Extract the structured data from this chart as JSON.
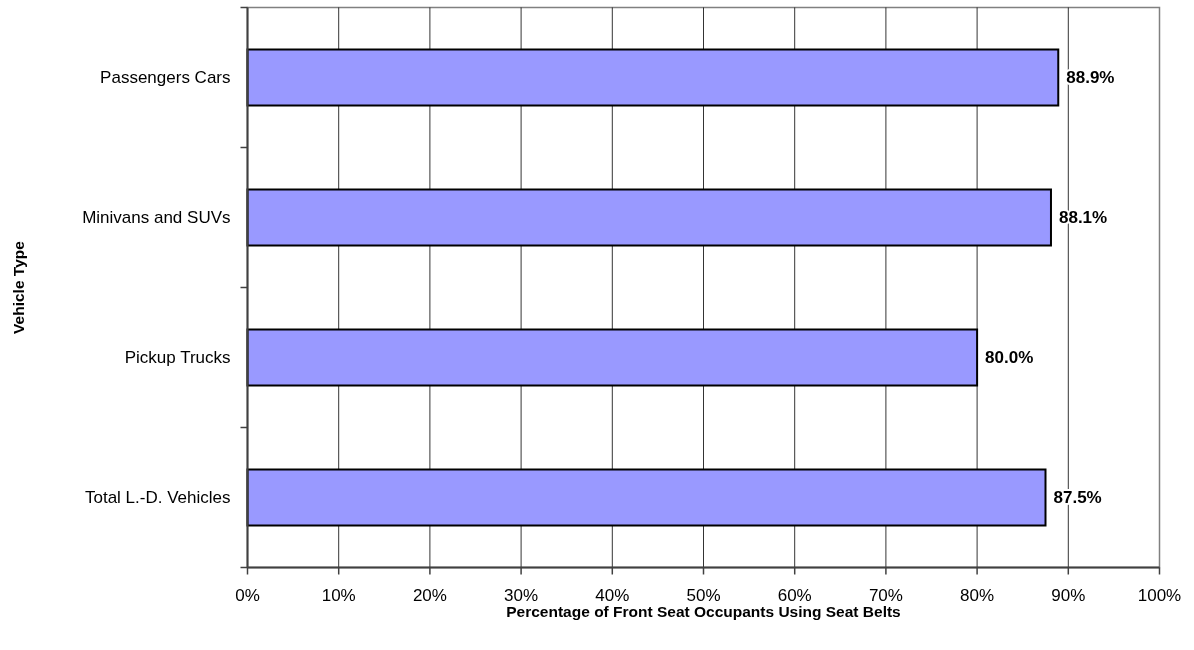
{
  "chart_data": {
    "type": "bar",
    "orientation": "horizontal",
    "xlabel": "Percentage of Front Seat Occupants Using Seat Belts",
    "ylabel": "Vehicle Type",
    "categories": [
      "Passengers Cars",
      "Minivans and SUVs",
      "Pickup Trucks",
      "Total L.-D. Vehicles"
    ],
    "values": [
      88.9,
      88.1,
      80.0,
      87.5
    ],
    "color": "#9999ff",
    "value_labels": [
      "88.9%",
      "88.1%",
      "80.0%",
      "87.5%"
    ],
    "xlim": [
      0,
      100
    ],
    "xticks": [
      {
        "value": 0,
        "label": "0%"
      },
      {
        "value": 10,
        "label": "10%"
      },
      {
        "value": 20,
        "label": "20%"
      },
      {
        "value": 30,
        "label": "30%"
      },
      {
        "value": 40,
        "label": "40%"
      },
      {
        "value": 50,
        "label": "50%"
      },
      {
        "value": 60,
        "label": "60%"
      },
      {
        "value": 70,
        "label": "70%"
      },
      {
        "value": 80,
        "label": "80%"
      },
      {
        "value": 90,
        "label": "90%"
      },
      {
        "value": 100,
        "label": "100%"
      }
    ],
    "grid": "x"
  }
}
